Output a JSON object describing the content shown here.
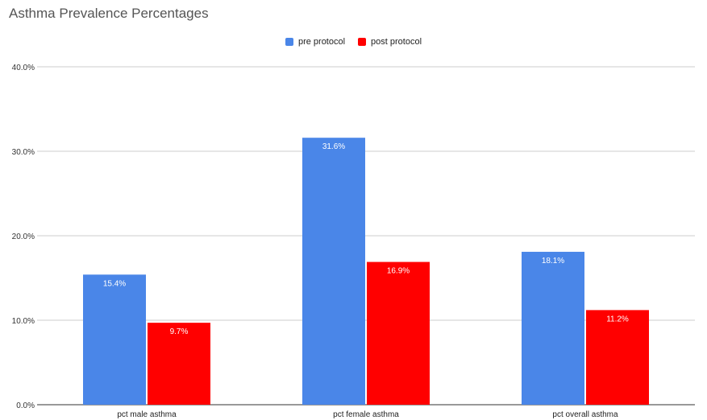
{
  "chart_data": {
    "type": "bar",
    "title": "Asthma Prevalence Percentages",
    "categories": [
      "pct male asthma",
      "pct female asthma",
      "pct overall asthma"
    ],
    "series": [
      {
        "name": "pre protocol",
        "color": "#4a86e8",
        "values": [
          15.4,
          31.6,
          18.1
        ],
        "labels": [
          "15.4%",
          "31.6%",
          "18.1%"
        ]
      },
      {
        "name": "post protocol",
        "color": "#ff0000",
        "values": [
          9.7,
          16.9,
          11.2
        ],
        "labels": [
          "9.7%",
          "16.9%",
          "11.2%"
        ]
      }
    ],
    "ylim": [
      0,
      40
    ],
    "yticks": [
      0,
      10,
      20,
      30,
      40
    ],
    "ytick_labels": [
      "0.0%",
      "10.0%",
      "20.0%",
      "30.0%",
      "40.0%"
    ],
    "xlabel": "",
    "ylabel": "",
    "grid": true,
    "legend_position": "top"
  }
}
